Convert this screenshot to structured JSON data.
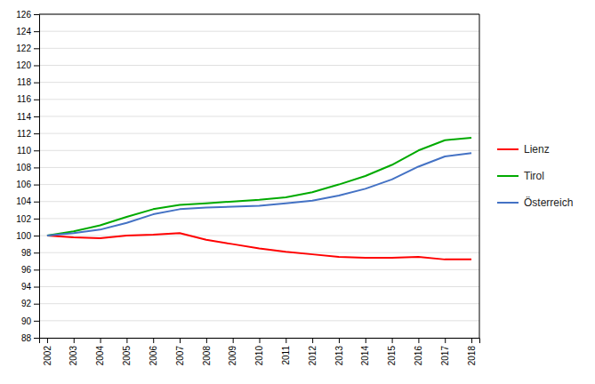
{
  "chart_data": {
    "type": "line",
    "x": [
      2002,
      2003,
      2004,
      2005,
      2006,
      2007,
      2008,
      2009,
      2010,
      2011,
      2012,
      2013,
      2014,
      2015,
      2016,
      2017,
      2018
    ],
    "series": [
      {
        "name": "Lienz",
        "color": "#ff0000",
        "values": [
          100.0,
          99.8,
          99.7,
          100.0,
          100.1,
          100.3,
          99.5,
          99.0,
          98.5,
          98.1,
          97.8,
          97.5,
          97.4,
          97.4,
          97.5,
          97.2,
          97.2
        ]
      },
      {
        "name": "Tirol",
        "color": "#00aa00",
        "values": [
          100.0,
          100.5,
          101.2,
          102.2,
          103.1,
          103.6,
          103.8,
          104.0,
          104.2,
          104.5,
          105.1,
          106.0,
          107.0,
          108.3,
          110.0,
          111.2,
          111.5
        ]
      },
      {
        "name": "Österreich",
        "color": "#4472c4",
        "values": [
          100.0,
          100.3,
          100.7,
          101.5,
          102.5,
          103.1,
          103.3,
          103.4,
          103.5,
          103.8,
          104.1,
          104.7,
          105.5,
          106.6,
          108.1,
          109.3,
          109.7
        ]
      }
    ],
    "xlim": [
      2001.7,
      2018.3
    ],
    "xticks": [
      2002,
      2003,
      2004,
      2005,
      2006,
      2007,
      2008,
      2009,
      2010,
      2011,
      2012,
      2013,
      2014,
      2015,
      2016,
      2017,
      2018
    ],
    "ylim": [
      88,
      126
    ],
    "yticks": [
      88,
      90,
      92,
      94,
      96,
      98,
      100,
      102,
      104,
      106,
      108,
      110,
      112,
      114,
      116,
      118,
      120,
      122,
      124,
      126
    ],
    "grid": true,
    "legend": "right"
  }
}
